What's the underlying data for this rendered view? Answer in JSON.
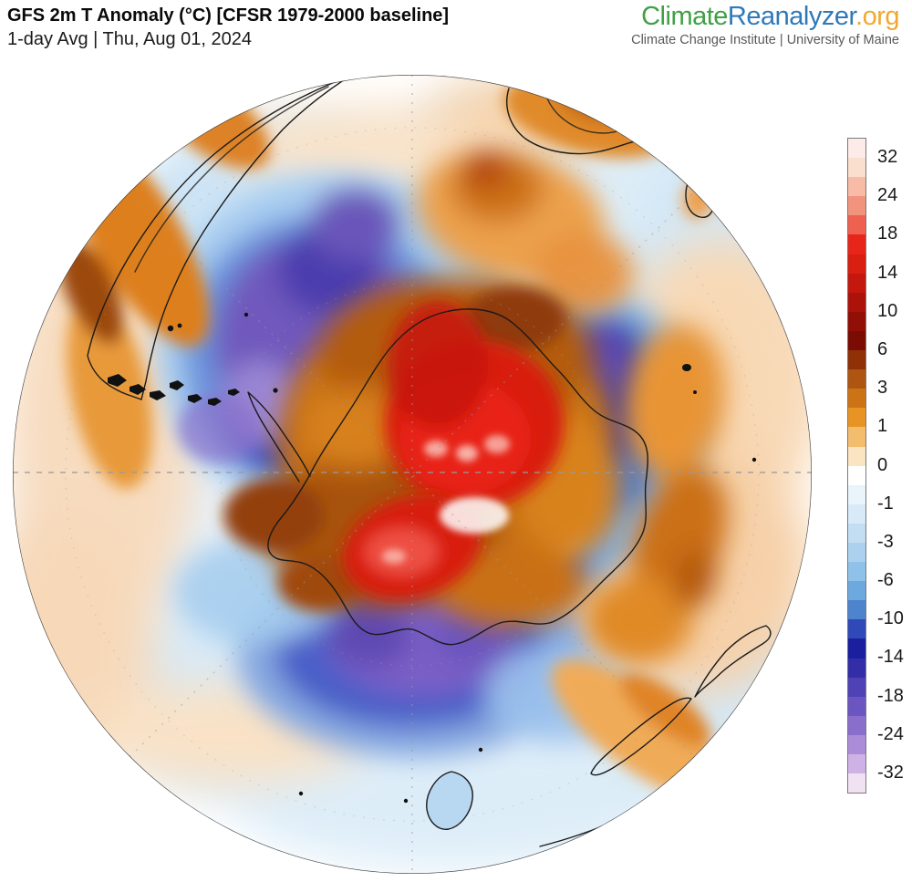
{
  "header": {
    "title": "GFS 2m T Anomaly (°C) [CFSR 1979-2000 baseline]",
    "subtitle": "1-day Avg | Thu, Aug 01, 2024"
  },
  "brand": {
    "climate": "Climate",
    "reanalyzer": "Reanalyzer",
    "org": ".org",
    "tagline": "Climate Change Institute | University of Maine",
    "colors": {
      "climate": "#3fa045",
      "reanalyzer": "#2e79b9",
      "org": "#f0a832",
      "tagline": "#58595b"
    }
  },
  "colorbar": {
    "labels": [
      "32",
      "24",
      "18",
      "14",
      "10",
      "6",
      "3",
      "1",
      "0",
      "-1",
      "-3",
      "-6",
      "-10",
      "-14",
      "-18",
      "-24",
      "-32"
    ],
    "segment_colors": [
      "#fcebe8",
      "#fadfcd",
      "#f7bba6",
      "#f2937d",
      "#ee6050",
      "#e8251a",
      "#d91e12",
      "#c4180e",
      "#ab130a",
      "#920f07",
      "#7a0c04",
      "#8f3007",
      "#ad5511",
      "#cc7316",
      "#e89424",
      "#f3bd6e",
      "#fae4c2",
      "#ffffff",
      "#eaf4fb",
      "#d8eaf7",
      "#c3def3",
      "#abd1ee",
      "#90c2e9",
      "#6da9de",
      "#4e83cd",
      "#2f49b8",
      "#1b1f9f",
      "#332ea8",
      "#4f42b6",
      "#6b55c0",
      "#8a6ecb",
      "#ab8cd8",
      "#cfb2e5",
      "#f0e2f2"
    ]
  }
}
